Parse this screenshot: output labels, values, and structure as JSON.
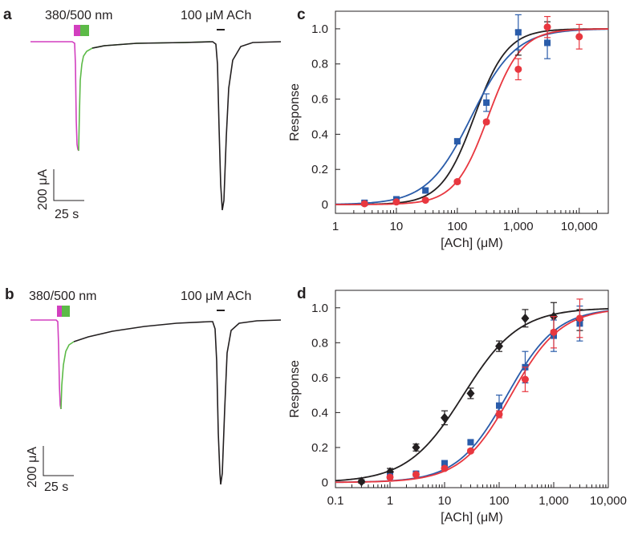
{
  "figure": {
    "panels": {
      "a": "a",
      "b": "b",
      "c": "c",
      "d": "d"
    }
  },
  "colors": {
    "black": "#231f20",
    "blue": "#2a5caa",
    "red": "#e8373f",
    "magenta": "#d23fbf",
    "green": "#5cba47"
  },
  "chart_data": [
    {
      "id": "a",
      "type": "line",
      "title": "",
      "light_label": "380/500 nm",
      "ach_label": "100 μM ACh",
      "scale_y_label": "200 μA",
      "scale_x_label": "25 s",
      "scale_y_value_uA": 200,
      "scale_x_value_s": 25,
      "traces": [
        {
          "name": "380 nm light",
          "color": "magenta",
          "peak_uA": -870
        },
        {
          "name": "500 nm light",
          "color": "green"
        },
        {
          "name": "100 μM ACh response",
          "color": "black",
          "peak_uA": -1320
        }
      ]
    },
    {
      "id": "b",
      "type": "line",
      "title": "",
      "light_label": "380/500 nm",
      "ach_label": "100 μM ACh",
      "scale_y_label": "200 μA",
      "scale_x_label": "25 s",
      "scale_y_value_uA": 200,
      "scale_x_value_s": 25,
      "traces": [
        {
          "name": "380 nm light",
          "color": "magenta",
          "peak_uA": -680
        },
        {
          "name": "500 nm light",
          "color": "green"
        },
        {
          "name": "100 μM ACh response",
          "color": "black",
          "peak_uA": -1230
        }
      ]
    },
    {
      "id": "c",
      "type": "scatter",
      "xscale": "log",
      "xlabel": "[ACh] (μM)",
      "ylabel": "Response",
      "xlim": [
        1,
        30000
      ],
      "ylim": [
        -0.05,
        1.1
      ],
      "xticks": [
        1,
        10,
        100,
        1000,
        10000
      ],
      "xtick_labels": [
        "1",
        "10",
        "100",
        "1,000",
        "10,000"
      ],
      "yticks": [
        0,
        0.2,
        0.4,
        0.6,
        0.8,
        1.0
      ],
      "ytick_labels": [
        "0",
        "0.2",
        "0.4",
        "0.6",
        "0.8",
        "1.0"
      ],
      "series": [
        {
          "name": "black",
          "color": "black",
          "marker": "none",
          "x": [],
          "y": [],
          "err": [],
          "ec50": 190,
          "hill": 1.6,
          "errbars": [
            {
              "x": 1000,
              "y": 0.92,
              "err": 0.07
            },
            {
              "x": 3000,
              "y": 0.98,
              "err": 0.06
            }
          ]
        },
        {
          "name": "blue",
          "color": "blue",
          "marker": "square",
          "x": [
            3,
            10,
            30,
            100,
            300,
            1000,
            3000
          ],
          "y": [
            0.01,
            0.03,
            0.08,
            0.36,
            0.58,
            0.98,
            0.92
          ],
          "err": [
            0.01,
            0.01,
            0.01,
            0.01,
            0.05,
            0.1,
            0.09
          ],
          "ec50": 170,
          "hill": 1.2
        },
        {
          "name": "red",
          "color": "red",
          "marker": "circle",
          "x": [
            3,
            10,
            30,
            100,
            300,
            1000,
            3000,
            10000
          ],
          "y": [
            0.005,
            0.015,
            0.025,
            0.13,
            0.47,
            0.77,
            1.01,
            0.955
          ],
          "err": [
            0.005,
            0.005,
            0.005,
            0.01,
            0.01,
            0.06,
            0.06,
            0.07
          ],
          "ec50": 320,
          "hill": 1.6
        }
      ]
    },
    {
      "id": "d",
      "type": "scatter",
      "xscale": "log",
      "xlabel": "[ACh] (μM)",
      "ylabel": "Response",
      "xlim": [
        0.1,
        10000
      ],
      "ylim": [
        -0.03,
        1.1
      ],
      "xticks": [
        0.1,
        1,
        10,
        100,
        1000,
        10000
      ],
      "xtick_labels": [
        "0.1",
        "1",
        "10",
        "100",
        "1,000",
        "10,000"
      ],
      "yticks": [
        0,
        0.2,
        0.4,
        0.6,
        0.8,
        1.0
      ],
      "ytick_labels": [
        "0",
        "0.2",
        "0.4",
        "0.6",
        "0.8",
        "1.0"
      ],
      "series": [
        {
          "name": "black",
          "color": "black",
          "marker": "diamond",
          "x": [
            0.3,
            1,
            3,
            10,
            30,
            100,
            300,
            1000,
            3000
          ],
          "y": [
            0.005,
            0.06,
            0.2,
            0.37,
            0.51,
            0.78,
            0.94,
            0.95,
            0.93
          ],
          "err": [
            0.01,
            0.02,
            0.02,
            0.04,
            0.03,
            0.03,
            0.05,
            0.08,
            0.06
          ],
          "ec50": 22,
          "hill": 0.85
        },
        {
          "name": "blue",
          "color": "blue",
          "marker": "square",
          "x": [
            1,
            3,
            10,
            30,
            100,
            300,
            1000,
            3000
          ],
          "y": [
            0.035,
            0.05,
            0.11,
            0.23,
            0.44,
            0.66,
            0.84,
            0.91
          ],
          "err": [
            0.01,
            0.01,
            0.01,
            0.01,
            0.06,
            0.09,
            0.09,
            0.1
          ],
          "ec50": 140,
          "hill": 0.95
        },
        {
          "name": "red",
          "color": "red",
          "marker": "circle",
          "x": [
            1,
            3,
            10,
            30,
            100,
            300,
            1000,
            3000
          ],
          "y": [
            0.03,
            0.045,
            0.08,
            0.18,
            0.39,
            0.59,
            0.86,
            0.94
          ],
          "err": [
            0.005,
            0.005,
            0.01,
            0.01,
            0.02,
            0.07,
            0.09,
            0.11
          ],
          "ec50": 165,
          "hill": 0.95
        }
      ]
    }
  ]
}
